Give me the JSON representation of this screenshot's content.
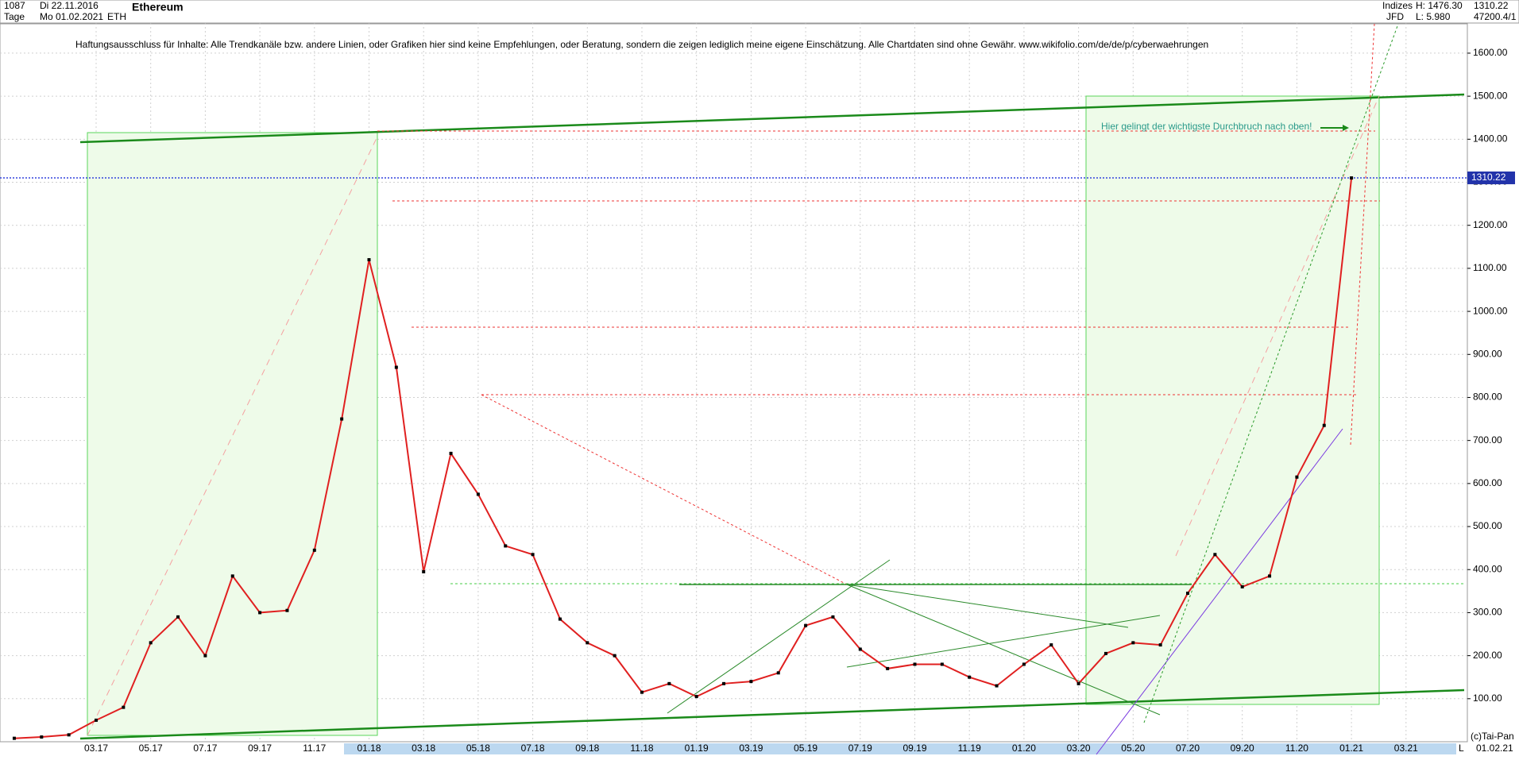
{
  "header": {
    "count": "1087",
    "start": "Di 22.11.2016",
    "period": "Tage",
    "end": "Mo 01.02.2021",
    "symbol": "ETH",
    "name": "Ethereum",
    "group": "Indizes",
    "source": "JFD",
    "high": "H: 1476.30",
    "low": "L: 5.980",
    "last": 1310.22,
    "volume": "47200.4/1"
  },
  "chart_data": {
    "type": "line",
    "disclaimer": "Haftungsausschluss für Inhalte: Alle Trendkanäle bzw. andere Linien, oder Grafiken hier sind keine Empfehlungen, oder Beratung, sondern die zeigen lediglich meine eigene Einschätzung. Alle Chartdaten sind ohne Gewähr.  www.wikifolio.com/de/de/p/cyberwaehrungen",
    "annotation": "Hier gelingt der wichtigste Durchbruch nach oben!",
    "x": [
      "12.16",
      "01.17",
      "02.17",
      "03.17",
      "04.17",
      "05.17",
      "06.17",
      "07.17",
      "08.17",
      "09.17",
      "10.17",
      "11.17",
      "12.17",
      "01.18",
      "02.18",
      "03.18",
      "04.18",
      "05.18",
      "06.18",
      "07.18",
      "08.18",
      "09.18",
      "10.18",
      "11.18",
      "12.18",
      "01.19",
      "02.19",
      "03.19",
      "04.19",
      "05.19",
      "06.19",
      "07.19",
      "08.19",
      "09.19",
      "10.19",
      "11.19",
      "12.19",
      "01.20",
      "02.20",
      "03.20",
      "04.20",
      "05.20",
      "06.20",
      "07.20",
      "08.20",
      "09.20",
      "10.20",
      "11.20",
      "12.20",
      "01.21"
    ],
    "series": [
      {
        "name": "ETH",
        "color": "#e02020",
        "values": [
          8,
          11,
          16,
          50,
          80,
          230,
          290,
          200,
          385,
          300,
          305,
          445,
          750,
          1120,
          870,
          395,
          670,
          575,
          455,
          435,
          285,
          230,
          200,
          115,
          135,
          105,
          135,
          140,
          160,
          270,
          290,
          215,
          170,
          180,
          180,
          150,
          130,
          180,
          225,
          135,
          205,
          230,
          225,
          345,
          435,
          360,
          385,
          615,
          735,
          1310
        ]
      }
    ],
    "ylim": [
      0,
      1670
    ],
    "yticks": [
      {
        "value": 100,
        "label": "100.00"
      },
      {
        "value": 200,
        "label": "200.00"
      },
      {
        "value": 300,
        "label": "300.00"
      },
      {
        "value": 400,
        "label": "400.00"
      },
      {
        "value": 500,
        "label": "500.00"
      },
      {
        "value": 600,
        "label": "600.00"
      },
      {
        "value": 700,
        "label": "700.00"
      },
      {
        "value": 800,
        "label": "800.00"
      },
      {
        "value": 900,
        "label": "900.00"
      },
      {
        "value": 1000,
        "label": "1000.00"
      },
      {
        "value": 1100,
        "label": "1100.00"
      },
      {
        "value": 1200,
        "label": "1200.00"
      },
      {
        "value": 1300,
        "label": "1300.00"
      },
      {
        "value": 1400,
        "label": "1400.00"
      },
      {
        "value": 1500,
        "label": "1500.00"
      },
      {
        "value": 1600,
        "label": "1600.00"
      }
    ],
    "xticks": [
      "03.17",
      "05.17",
      "07.17",
      "09.17",
      "11.17",
      "01.18",
      "03.18",
      "05.18",
      "07.18",
      "09.18",
      "11.18",
      "01.19",
      "03.19",
      "05.19",
      "07.19",
      "09.19",
      "11.19",
      "01.20",
      "03.20",
      "05.20",
      "07.20",
      "09.20",
      "11.20",
      "01.21",
      "03.21"
    ],
    "grid": true,
    "copyright": "(c)Tai-Pan",
    "date": "01.02.21",
    "scale_mode": "L"
  }
}
